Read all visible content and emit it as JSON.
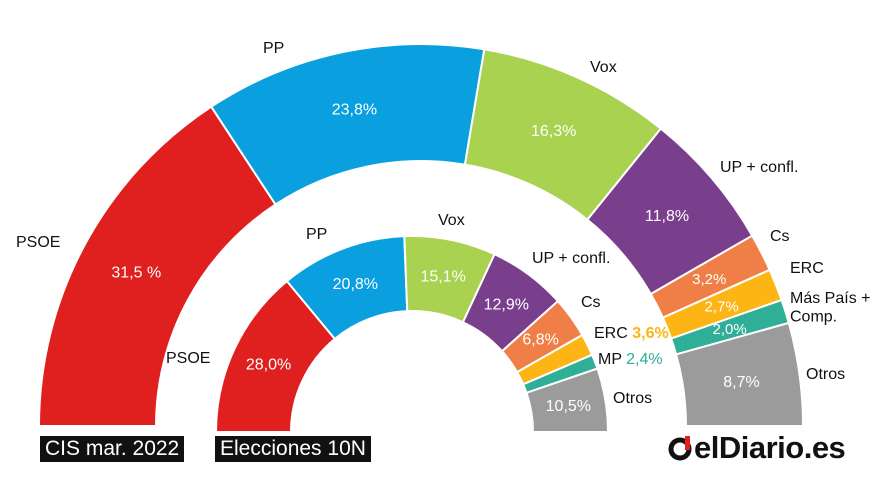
{
  "chart_data": [
    {
      "type": "pie",
      "subtype": "parliament-semicircle",
      "title": "CIS mar. 2022",
      "series": [
        {
          "party": "PSOE",
          "value": 31.5,
          "value_label": "31,5 %",
          "color": "#e0201f"
        },
        {
          "party": "PP",
          "value": 23.8,
          "value_label": "23,8%",
          "color": "#0a9fdf"
        },
        {
          "party": "Vox",
          "value": 16.3,
          "value_label": "16,3%",
          "color": "#a8d24f"
        },
        {
          "party": "UP + confl.",
          "value": 11.8,
          "value_label": "11,8%",
          "color": "#7a3f8c"
        },
        {
          "party": "Cs",
          "value": 3.2,
          "value_label": "3,2%",
          "color": "#ef7f47"
        },
        {
          "party": "ERC",
          "value": 2.7,
          "value_label": "2,7%",
          "color": "#fdb515"
        },
        {
          "party": "Más País + Comp.",
          "value": 2.0,
          "value_label": "2,0%",
          "color": "#2fae98"
        },
        {
          "party": "Otros",
          "value": 8.7,
          "value_label": "8,7%",
          "color": "#9b9b9b"
        }
      ]
    },
    {
      "type": "pie",
      "subtype": "parliament-semicircle",
      "title": "Elecciones 10N",
      "series": [
        {
          "party": "PSOE",
          "value": 28.0,
          "value_label": "28,0%",
          "color": "#e0201f"
        },
        {
          "party": "PP",
          "value": 20.8,
          "value_label": "20,8%",
          "color": "#0a9fdf"
        },
        {
          "party": "Vox",
          "value": 15.1,
          "value_label": "15,1%",
          "color": "#a8d24f"
        },
        {
          "party": "UP + confl.",
          "value": 12.9,
          "value_label": "12,9%",
          "color": "#7a3f8c"
        },
        {
          "party": "Cs",
          "value": 6.8,
          "value_label": "6,8%",
          "color": "#ef7f47"
        },
        {
          "party": "ERC",
          "value": 3.6,
          "value_label": "3,6%",
          "color": "#fdb515"
        },
        {
          "party": "MP",
          "value": 2.4,
          "value_label": "2,4%",
          "color": "#2fae98"
        },
        {
          "party": "Otros",
          "value": 10.5,
          "value_label": "10,5%",
          "color": "#9b9b9b"
        }
      ]
    }
  ],
  "labels": {
    "outer_caption": "CIS mar. 2022",
    "inner_caption": "Elecciones 10N",
    "logo_text": "elDiario.es"
  },
  "colors": {
    "text": "#111111",
    "value_text": "#ffffff",
    "caption_bg": "#111111",
    "logo_red": "#e0201f"
  }
}
